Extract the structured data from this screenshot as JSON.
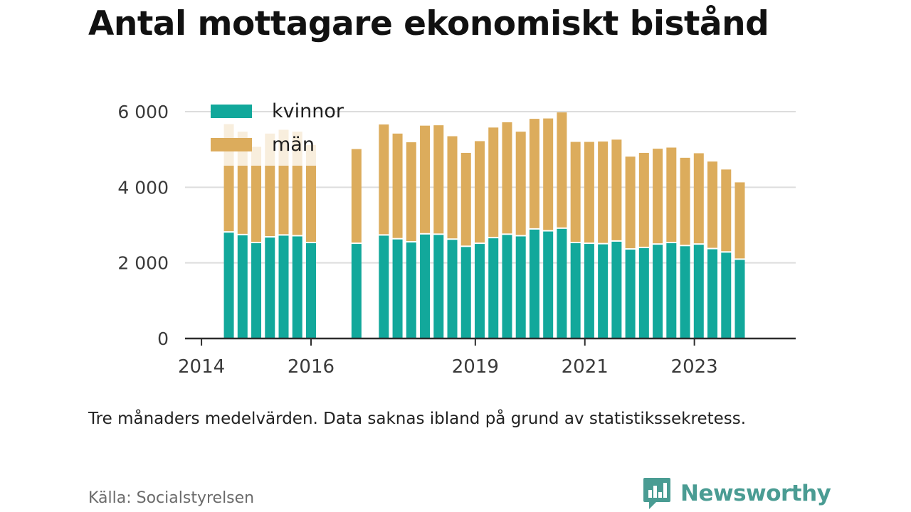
{
  "title": "Antal mottagare ekonomiskt bistånd",
  "note": "Tre månaders medelvärden. Data saknas ibland på grund av statistikssekretess.",
  "source": "Källa: Socialstyrelsen",
  "brand": {
    "name": "Newsworthy",
    "icon": "newsworthy-logo-icon",
    "color": "#4a9c93"
  },
  "chart_data": {
    "type": "bar",
    "stacked": true,
    "title": "Antal mottagare ekonomiskt bistånd",
    "xlabel": "",
    "ylabel": "",
    "ylim": [
      0,
      6000
    ],
    "yticks": [
      0,
      2000,
      4000,
      6000
    ],
    "ytick_labels": [
      "0",
      "2 000",
      "4 000",
      "6 000"
    ],
    "x_range": [
      2013.7,
      2024.85
    ],
    "xticks": [
      2014,
      2016,
      2019,
      2021,
      2023
    ],
    "xtick_labels": [
      "2014",
      "2016",
      "2019",
      "2021",
      "2023"
    ],
    "grid": true,
    "legend": "top-left",
    "colors": {
      "kvinnor": "#12a89b",
      "män": "#dcac5c",
      "faded": "#f8eedd"
    },
    "categories": [
      2014.5,
      2014.75,
      2015.0,
      2015.25,
      2015.5,
      2015.75,
      2016.0,
      2016.83,
      2017.33,
      2017.58,
      2017.83,
      2018.08,
      2018.33,
      2018.58,
      2018.83,
      2019.08,
      2019.33,
      2019.58,
      2019.83,
      2020.08,
      2020.33,
      2020.58,
      2020.83,
      2021.08,
      2021.33,
      2021.58,
      2021.83,
      2022.08,
      2022.33,
      2022.58,
      2022.83,
      2023.08,
      2023.33,
      2023.58,
      2023.83
    ],
    "series": [
      {
        "name": "kvinnor",
        "values": [
          2800,
          2730,
          2520,
          2670,
          2720,
          2700,
          2520,
          2500,
          2720,
          2620,
          2540,
          2750,
          2740,
          2610,
          2420,
          2500,
          2650,
          2740,
          2700,
          2880,
          2830,
          2900,
          2520,
          2500,
          2490,
          2560,
          2350,
          2390,
          2480,
          2520,
          2440,
          2480,
          2360,
          2270,
          2080
        ]
      },
      {
        "name": "män",
        "values": [
          1770,
          1840,
          2050,
          1900,
          1850,
          1870,
          2050,
          2510,
          2940,
          2800,
          2650,
          2880,
          2900,
          2740,
          2490,
          2720,
          2930,
          2980,
          2770,
          2930,
          2990,
          3080,
          2680,
          2700,
          2720,
          2700,
          2460,
          2520,
          2540,
          2530,
          2340,
          2420,
          2320,
          2200,
          2050
        ]
      }
    ],
    "faded_extension": {
      "description_values": [
        1100,
        900,
        500,
        850,
        950,
        900,
        550
      ]
    }
  }
}
